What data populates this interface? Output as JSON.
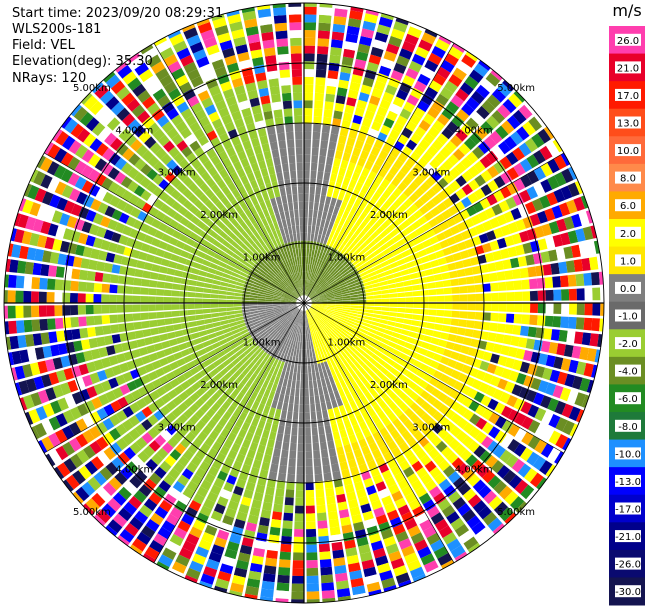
{
  "header": {
    "start_time": "Start time: 2023/09/20 08:29:31",
    "instrument": "WLS200s-181",
    "field": "Field: VEL",
    "elevation": "Elevation(deg): 35.30",
    "nrays": "NRays: 120"
  },
  "chart_data": {
    "type": "ppi",
    "n_rays": 120,
    "max_range_km": 5.0,
    "range_rings_km": [
      1,
      2,
      3,
      4,
      5
    ],
    "range_ring_labels": [
      "1.00km",
      "2.00km",
      "3.00km",
      "4.00km",
      "5.00km"
    ],
    "colorbar": {
      "unit": "m/s",
      "tick_labels": [
        "26.0",
        "21.0",
        "17.0",
        "13.0",
        "10.0",
        "8.0",
        "6.0",
        "2.0",
        "1.0",
        "0.0",
        "-1.0",
        "-2.0",
        "-4.0",
        "-6.0",
        "-8.0",
        "-10.0",
        "-13.0",
        "-17.0",
        "-21.0",
        "-26.0",
        "-30.0"
      ],
      "colors": [
        "#ff3eae",
        "#e8002a",
        "#ff1a00",
        "#ff4d1a",
        "#ff6a3a",
        "#ff8a4a",
        "#ffaa00",
        "#ffff00",
        "#ffe600",
        "#7f7f7f",
        "#6a6a6a",
        "#9acd32",
        "#6b8e23",
        "#228b22",
        "#1e7a3a",
        "#1e90ff",
        "#0000ff",
        "#0000cd",
        "#00008b",
        "#0a0a70",
        "#141450"
      ]
    }
  }
}
